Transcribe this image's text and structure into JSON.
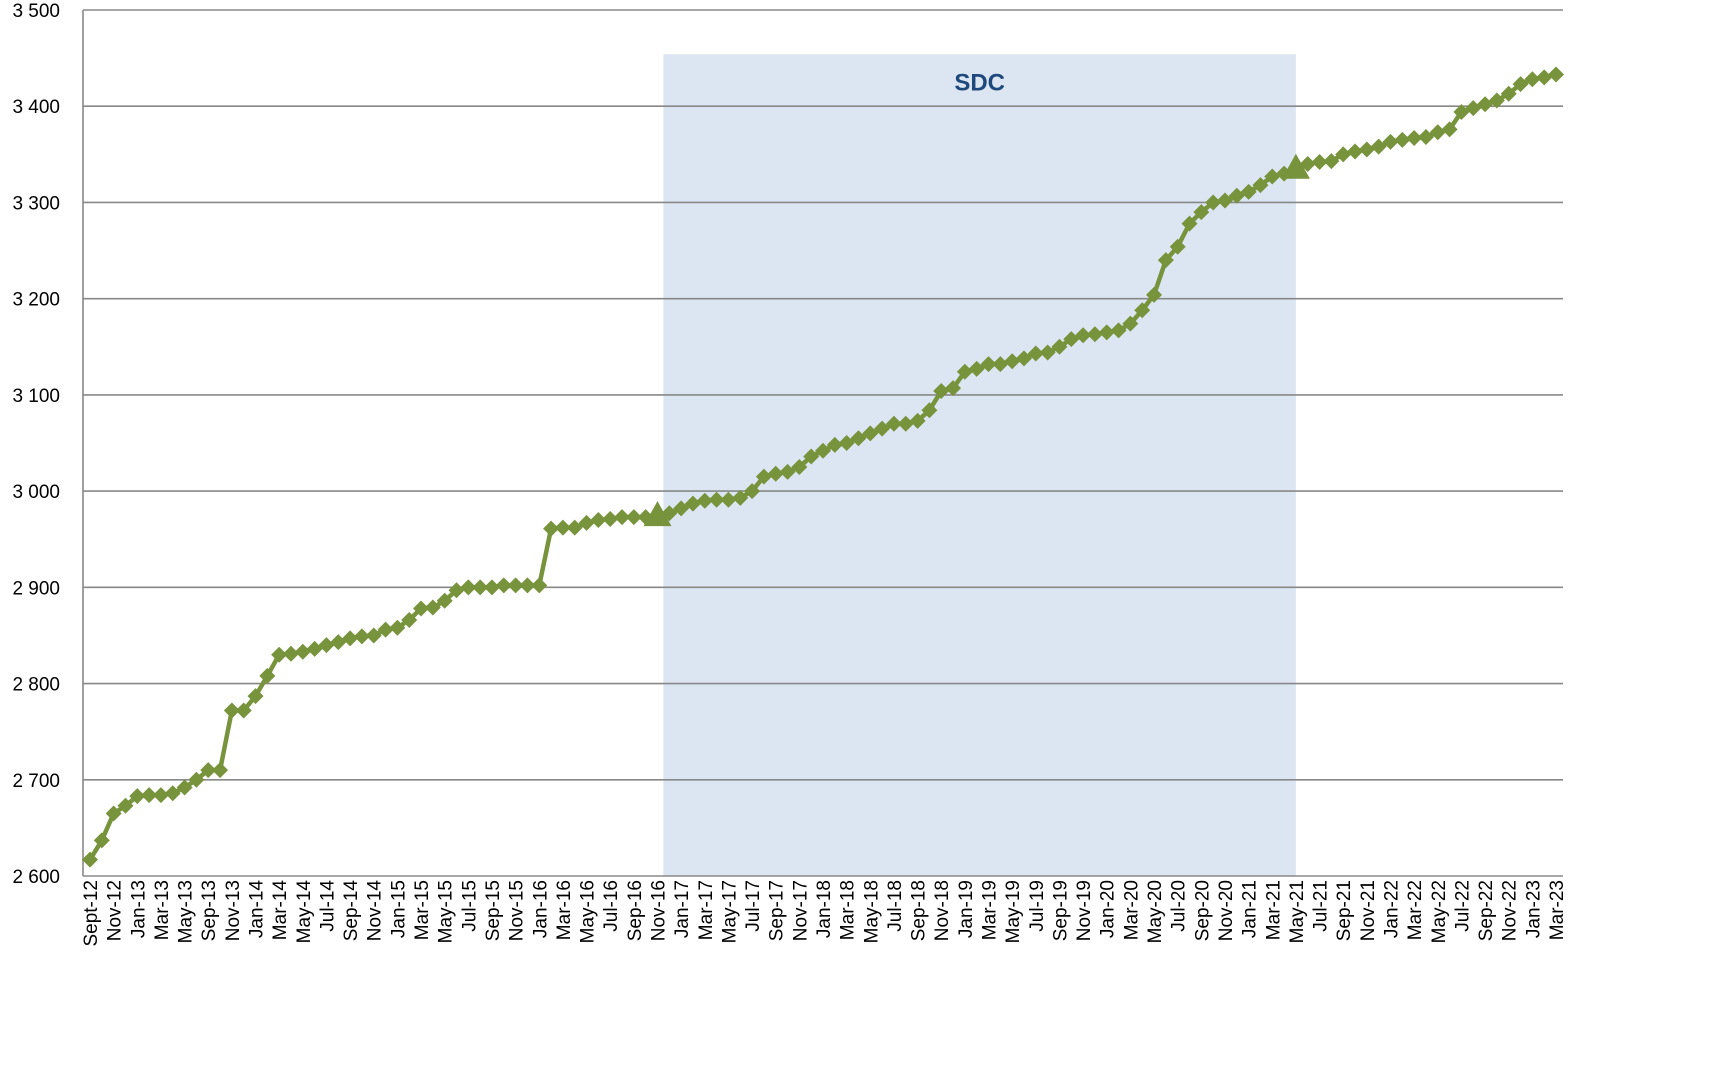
{
  "chart_data": {
    "type": "line",
    "categories": [
      "Sept-12",
      null,
      "Nov-12",
      null,
      "Jan-13",
      null,
      "Mar-13",
      null,
      "May-13",
      null,
      "Sep-13",
      null,
      "Nov-13",
      null,
      "Jan-14",
      null,
      "Mar-14",
      null,
      "May-14",
      null,
      "Jul-14",
      null,
      "Sep-14",
      null,
      "Nov-14",
      null,
      "Jan-15",
      null,
      "Mar-15",
      null,
      "May-15",
      null,
      "Jul-15",
      null,
      "Sep-15",
      null,
      "Nov-15",
      null,
      "Jan-16",
      null,
      "Mar-16",
      null,
      "May-16",
      null,
      "Jul-16",
      null,
      "Sep-16",
      null,
      "Nov-16",
      null,
      "Jan-17",
      null,
      "Mar-17",
      null,
      "May-17",
      null,
      "Jul-17",
      null,
      "Sep-17",
      null,
      "Nov-17",
      null,
      "Jan-18",
      null,
      "Mar-18",
      null,
      "May-18",
      null,
      "Jul-18",
      null,
      "Sep-18",
      null,
      "Nov-18",
      null,
      "Jan-19",
      null,
      "Mar-19",
      null,
      "May-19",
      null,
      "Jul-19",
      null,
      "Sep-19",
      null,
      "Nov-19",
      null,
      "Jan-20",
      null,
      "Mar-20",
      null,
      "May-20",
      null,
      "Jul-20",
      null,
      "Sep-20",
      null,
      "Nov-20",
      null,
      "Jan-21",
      null,
      "Mar-21",
      null,
      "May-21",
      null,
      "Jul-21",
      null,
      "Sep-21",
      null,
      "Nov-21",
      null,
      "Jan-22",
      null,
      "Mar-22",
      null,
      "May-22",
      null,
      "Jul-22",
      null,
      "Sep-22",
      null,
      "Nov-22",
      null,
      "Jan-23",
      null,
      "Mar-23"
    ],
    "values": [
      2617,
      2637,
      2665,
      2673,
      2683,
      2684,
      2684,
      2686,
      2692,
      2700,
      2710,
      2710,
      2772,
      2772,
      2787,
      2808,
      2830,
      2831,
      2833,
      2836,
      2840,
      2843,
      2847,
      2849,
      2850,
      2856,
      2858,
      2866,
      2878,
      2879,
      2886,
      2897,
      2900,
      2900,
      2900,
      2902,
      2902,
      2902,
      2902,
      2961,
      2962,
      2962,
      2967,
      2970,
      2971,
      2973,
      2973,
      2973,
      2974,
      2977,
      2982,
      2987,
      2990,
      2991,
      2991,
      2993,
      3000,
      3015,
      3018,
      3020,
      3025,
      3036,
      3042,
      3048,
      3050,
      3055,
      3060,
      3065,
      3070,
      3070,
      3073,
      3084,
      3104,
      3107,
      3124,
      3127,
      3132,
      3132,
      3135,
      3138,
      3143,
      3144,
      3150,
      3158,
      3162,
      3163,
      3165,
      3167,
      3174,
      3188,
      3204,
      3240,
      3254,
      3278,
      3290,
      3300,
      3302,
      3307,
      3311,
      3318,
      3327,
      3330,
      3335,
      3340,
      3342,
      3343,
      3350,
      3353,
      3355,
      3358,
      3363,
      3365,
      3367,
      3368,
      3373,
      3376,
      3394,
      3398,
      3402,
      3406,
      3413,
      3423,
      3428,
      3430,
      3433
    ],
    "color": "#77933c",
    "triangle_markers": [
      48,
      102
    ],
    "highlight": {
      "label": "SDC",
      "start": 49,
      "end": 102,
      "top": 3454,
      "color": "#dce6f2"
    },
    "ylim": [
      2600,
      3500
    ],
    "yticks": [
      {
        "value": 2600,
        "label": "2 600"
      },
      {
        "value": 2700,
        "label": "2 700"
      },
      {
        "value": 2800,
        "label": "2 800"
      },
      {
        "value": 2900,
        "label": "2 900"
      },
      {
        "value": 3000,
        "label": "3 000"
      },
      {
        "value": 3100,
        "label": "3 100"
      },
      {
        "value": 3200,
        "label": "3 200"
      },
      {
        "value": 3300,
        "label": "3 300"
      },
      {
        "value": 3400,
        "label": "3 400"
      },
      {
        "value": 3500,
        "label": "3 500"
      }
    ],
    "grid": true
  }
}
